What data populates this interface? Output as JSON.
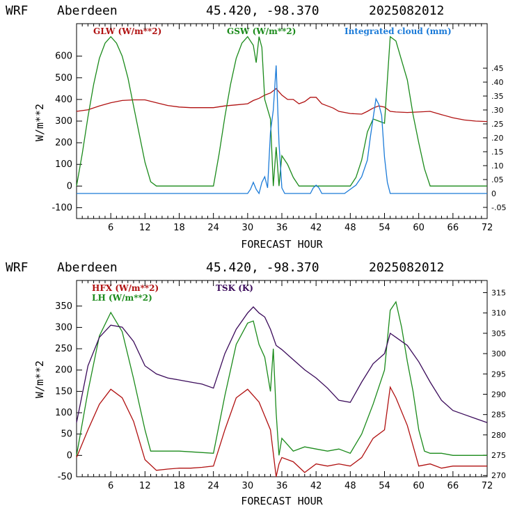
{
  "charts": [
    {
      "header": {
        "model": "WRF",
        "station": "Aberdeen",
        "coords": "45.420, -98.370",
        "run": "2025082012"
      },
      "legend": [
        {
          "label": "GLW (W/m**2)",
          "color": "#b01010"
        },
        {
          "label": "GSW (W/m**2)",
          "color": "#1a8a1a"
        },
        {
          "label": "Integrated cloud (mm)",
          "color": "#1a7ad8"
        }
      ],
      "ylabel": "W/m**2",
      "xlabel": "FORECAST HOUR",
      "xticks": [
        "6",
        "12",
        "18",
        "24",
        "30",
        "36",
        "42",
        "48",
        "54",
        "60",
        "66",
        "72"
      ],
      "yticks": [
        "-100",
        "0",
        "100",
        "200",
        "300",
        "400",
        "500",
        "600"
      ],
      "rticks": [
        "-.05",
        "0",
        ".05",
        ".10",
        ".15",
        ".20",
        ".25",
        ".30",
        ".35",
        ".40",
        ".45"
      ]
    },
    {
      "header": {
        "model": "WRF",
        "station": "Aberdeen",
        "coords": "45.420, -98.370",
        "run": "2025082012"
      },
      "legend": [
        {
          "label": "HFX (W/m**2)",
          "color": "#b01010"
        },
        {
          "label": "LH (W/m**2)",
          "color": "#1a8a1a"
        },
        {
          "label": "TSK (K)",
          "color": "#3a0a5a"
        }
      ],
      "ylabel": "W/m**2",
      "xlabel": "FORECAST HOUR",
      "xticks": [
        "6",
        "12",
        "18",
        "24",
        "30",
        "36",
        "42",
        "48",
        "54",
        "60",
        "66",
        "72"
      ],
      "yticks": [
        "-50",
        "0",
        "50",
        "100",
        "150",
        "200",
        "250",
        "300",
        "350"
      ],
      "rticks": [
        "270",
        "275",
        "280",
        "285",
        "290",
        "295",
        "300",
        "305",
        "310",
        "315"
      ]
    }
  ],
  "chart_data": [
    {
      "type": "line",
      "title": "WRF Aberdeen 45.420, -98.370 2025082012",
      "xlabel": "FORECAST HOUR",
      "ylabel": "W/m**2",
      "xlim": [
        0,
        72
      ],
      "ylim": [
        -150,
        750
      ],
      "y2lim": [
        -0.09,
        0.61
      ],
      "grid": false,
      "legend": "top",
      "series": [
        {
          "name": "GLW (W/m**2)",
          "color": "#b01010",
          "axis": "left",
          "x": [
            0,
            2,
            4,
            6,
            8,
            10,
            12,
            14,
            16,
            18,
            20,
            22,
            24,
            26,
            28,
            30,
            31,
            32,
            33,
            34,
            35,
            36,
            37,
            38,
            39,
            40,
            41,
            42,
            43,
            44,
            45,
            46,
            48,
            50,
            51,
            52,
            53,
            54,
            55,
            56,
            58,
            60,
            62,
            64,
            66,
            68,
            70,
            72
          ],
          "y": [
            345,
            352,
            370,
            385,
            395,
            398,
            398,
            385,
            372,
            365,
            362,
            362,
            362,
            370,
            375,
            380,
            395,
            405,
            420,
            430,
            450,
            420,
            400,
            400,
            380,
            390,
            410,
            410,
            380,
            370,
            360,
            345,
            335,
            332,
            345,
            360,
            370,
            365,
            345,
            342,
            340,
            342,
            345,
            330,
            315,
            305,
            300,
            298
          ]
        },
        {
          "name": "GSW (W/m**2)",
          "color": "#1a8a1a",
          "axis": "left",
          "x": [
            0,
            1,
            2,
            3,
            4,
            5,
            6,
            7,
            8,
            9,
            10,
            11,
            12,
            13,
            14,
            24,
            25,
            26,
            27,
            28,
            29,
            30,
            31,
            31.5,
            32,
            32.5,
            33,
            34,
            34.5,
            35,
            35.5,
            36,
            37,
            38,
            39,
            40,
            41,
            42,
            48,
            49,
            50,
            51,
            52,
            53,
            54,
            55,
            56,
            57,
            58,
            59,
            60,
            61,
            62,
            72
          ],
          "y": [
            0,
            150,
            320,
            470,
            590,
            660,
            690,
            660,
            600,
            500,
            370,
            240,
            110,
            20,
            0,
            0,
            150,
            320,
            470,
            590,
            660,
            690,
            650,
            570,
            690,
            640,
            400,
            310,
            0,
            180,
            0,
            140,
            100,
            40,
            0,
            0,
            0,
            0,
            0,
            40,
            120,
            250,
            310,
            300,
            290,
            690,
            670,
            580,
            490,
            330,
            200,
            80,
            0,
            0
          ]
        },
        {
          "name": "Integrated cloud (mm)",
          "color": "#1a7ad8",
          "axis": "right",
          "x": [
            0,
            30,
            30.5,
            31,
            31.5,
            32,
            32.5,
            33,
            33.5,
            34,
            34.5,
            35,
            35.5,
            36,
            36.5,
            41,
            41.5,
            42,
            42.5,
            43,
            47,
            48,
            49,
            50,
            51,
            51.5,
            52,
            52.5,
            53,
            53.5,
            54,
            54.5,
            55,
            72
          ],
          "y": [
            0,
            0,
            0.015,
            0.04,
            0.015,
            0,
            0.04,
            0.06,
            0.02,
            0.22,
            0.3,
            0.46,
            0.18,
            0.02,
            0,
            0,
            0.02,
            0.03,
            0.02,
            0,
            0,
            0.015,
            0.03,
            0.06,
            0.12,
            0.2,
            0.27,
            0.34,
            0.32,
            0.28,
            0.13,
            0.04,
            0,
            0
          ]
        }
      ]
    },
    {
      "type": "line",
      "title": "WRF Aberdeen 45.420, -98.370 2025082012",
      "xlabel": "FORECAST HOUR",
      "ylabel": "W/m**2",
      "xlim": [
        0,
        72
      ],
      "ylim": [
        -50,
        410
      ],
      "y2lim": [
        269.7,
        318
      ],
      "grid": false,
      "legend": "top-left",
      "series": [
        {
          "name": "HFX (W/m**2)",
          "color": "#b01010",
          "axis": "left",
          "x": [
            0,
            2,
            4,
            6,
            8,
            10,
            12,
            14,
            16,
            18,
            20,
            22,
            24,
            26,
            28,
            30,
            32,
            34,
            35,
            35.5,
            36,
            38,
            40,
            42,
            44,
            46,
            48,
            50,
            52,
            54,
            55,
            56,
            58,
            60,
            62,
            64,
            66,
            68,
            70,
            72
          ],
          "y": [
            -5,
            60,
            120,
            155,
            135,
            80,
            -10,
            -35,
            -32,
            -30,
            -30,
            -28,
            -25,
            60,
            135,
            155,
            125,
            60,
            -50,
            -20,
            -5,
            -15,
            -40,
            -20,
            -25,
            -20,
            -25,
            -5,
            40,
            60,
            160,
            135,
            70,
            -25,
            -20,
            -30,
            -25,
            -25,
            -25,
            -25
          ]
        },
        {
          "name": "LH (W/m**2)",
          "color": "#1a8a1a",
          "axis": "left",
          "x": [
            0,
            2,
            4,
            6,
            8,
            10,
            12,
            13,
            18,
            24,
            26,
            28,
            30,
            31,
            32,
            33,
            34,
            34.5,
            35,
            35.5,
            36,
            38,
            40,
            42,
            44,
            46,
            48,
            50,
            52,
            54,
            55,
            56,
            57,
            58,
            59,
            60,
            61,
            62,
            64,
            66,
            72
          ],
          "y": [
            0,
            150,
            280,
            335,
            290,
            180,
            60,
            10,
            10,
            5,
            140,
            260,
            310,
            315,
            260,
            230,
            150,
            250,
            100,
            0,
            40,
            10,
            20,
            15,
            10,
            15,
            5,
            50,
            120,
            200,
            340,
            360,
            300,
            220,
            150,
            60,
            10,
            5,
            5,
            0,
            0
          ]
        },
        {
          "name": "TSK (K)",
          "color": "#3a0a5a",
          "axis": "right",
          "x": [
            0,
            2,
            4,
            6,
            8,
            10,
            12,
            14,
            16,
            18,
            20,
            22,
            24,
            26,
            28,
            30,
            31,
            32,
            33,
            34,
            35,
            36,
            38,
            40,
            42,
            44,
            46,
            48,
            50,
            52,
            54,
            55,
            56,
            58,
            60,
            62,
            64,
            66,
            68,
            70,
            72
          ],
          "y": [
            283,
            297,
            304,
            307,
            306.5,
            303,
            297,
            295,
            294,
            293.5,
            293,
            292.5,
            291.5,
            300,
            306,
            310,
            311.5,
            310,
            309,
            306,
            302,
            301,
            298.5,
            296,
            294,
            291.5,
            288.5,
            288,
            293,
            297.5,
            300,
            305,
            304,
            302,
            298,
            293,
            288.5,
            286,
            285,
            284,
            283
          ]
        }
      ]
    }
  ]
}
